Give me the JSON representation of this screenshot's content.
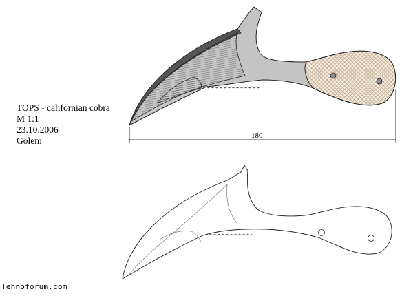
{
  "title_block": {
    "name": "TOPS - californian cobra",
    "scale": "M 1:1",
    "date": "23.10.2006",
    "author": "Golem"
  },
  "dimension": {
    "length_label": "180"
  },
  "watermark": "Tehnoforum.com",
  "colors": {
    "blade_fill": "#c4c4c4",
    "spine": "#555555",
    "handle_fill": "#f6efe1",
    "handle_pattern": "#b89a80",
    "pin": "#8c8c8c",
    "outline": "#222222"
  }
}
